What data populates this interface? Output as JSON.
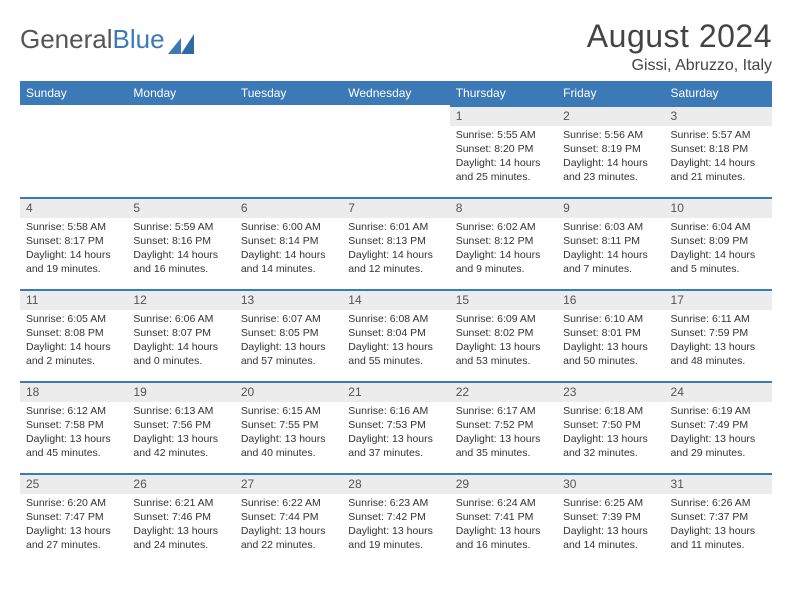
{
  "logo": {
    "text_gray": "General",
    "text_blue": "Blue"
  },
  "header": {
    "month_title": "August 2024",
    "location": "Gissi, Abruzzo, Italy"
  },
  "style": {
    "accent": "#3b79b7",
    "daynum_bg": "#ececec",
    "text_color": "#333333",
    "header_text": "#444444"
  },
  "weekdays": [
    "Sunday",
    "Monday",
    "Tuesday",
    "Wednesday",
    "Thursday",
    "Friday",
    "Saturday"
  ],
  "weeks": [
    [
      null,
      null,
      null,
      null,
      {
        "n": "1",
        "sr": "Sunrise: 5:55 AM",
        "ss": "Sunset: 8:20 PM",
        "d1": "Daylight: 14 hours",
        "d2": "and 25 minutes."
      },
      {
        "n": "2",
        "sr": "Sunrise: 5:56 AM",
        "ss": "Sunset: 8:19 PM",
        "d1": "Daylight: 14 hours",
        "d2": "and 23 minutes."
      },
      {
        "n": "3",
        "sr": "Sunrise: 5:57 AM",
        "ss": "Sunset: 8:18 PM",
        "d1": "Daylight: 14 hours",
        "d2": "and 21 minutes."
      }
    ],
    [
      {
        "n": "4",
        "sr": "Sunrise: 5:58 AM",
        "ss": "Sunset: 8:17 PM",
        "d1": "Daylight: 14 hours",
        "d2": "and 19 minutes."
      },
      {
        "n": "5",
        "sr": "Sunrise: 5:59 AM",
        "ss": "Sunset: 8:16 PM",
        "d1": "Daylight: 14 hours",
        "d2": "and 16 minutes."
      },
      {
        "n": "6",
        "sr": "Sunrise: 6:00 AM",
        "ss": "Sunset: 8:14 PM",
        "d1": "Daylight: 14 hours",
        "d2": "and 14 minutes."
      },
      {
        "n": "7",
        "sr": "Sunrise: 6:01 AM",
        "ss": "Sunset: 8:13 PM",
        "d1": "Daylight: 14 hours",
        "d2": "and 12 minutes."
      },
      {
        "n": "8",
        "sr": "Sunrise: 6:02 AM",
        "ss": "Sunset: 8:12 PM",
        "d1": "Daylight: 14 hours",
        "d2": "and 9 minutes."
      },
      {
        "n": "9",
        "sr": "Sunrise: 6:03 AM",
        "ss": "Sunset: 8:11 PM",
        "d1": "Daylight: 14 hours",
        "d2": "and 7 minutes."
      },
      {
        "n": "10",
        "sr": "Sunrise: 6:04 AM",
        "ss": "Sunset: 8:09 PM",
        "d1": "Daylight: 14 hours",
        "d2": "and 5 minutes."
      }
    ],
    [
      {
        "n": "11",
        "sr": "Sunrise: 6:05 AM",
        "ss": "Sunset: 8:08 PM",
        "d1": "Daylight: 14 hours",
        "d2": "and 2 minutes."
      },
      {
        "n": "12",
        "sr": "Sunrise: 6:06 AM",
        "ss": "Sunset: 8:07 PM",
        "d1": "Daylight: 14 hours",
        "d2": "and 0 minutes."
      },
      {
        "n": "13",
        "sr": "Sunrise: 6:07 AM",
        "ss": "Sunset: 8:05 PM",
        "d1": "Daylight: 13 hours",
        "d2": "and 57 minutes."
      },
      {
        "n": "14",
        "sr": "Sunrise: 6:08 AM",
        "ss": "Sunset: 8:04 PM",
        "d1": "Daylight: 13 hours",
        "d2": "and 55 minutes."
      },
      {
        "n": "15",
        "sr": "Sunrise: 6:09 AM",
        "ss": "Sunset: 8:02 PM",
        "d1": "Daylight: 13 hours",
        "d2": "and 53 minutes."
      },
      {
        "n": "16",
        "sr": "Sunrise: 6:10 AM",
        "ss": "Sunset: 8:01 PM",
        "d1": "Daylight: 13 hours",
        "d2": "and 50 minutes."
      },
      {
        "n": "17",
        "sr": "Sunrise: 6:11 AM",
        "ss": "Sunset: 7:59 PM",
        "d1": "Daylight: 13 hours",
        "d2": "and 48 minutes."
      }
    ],
    [
      {
        "n": "18",
        "sr": "Sunrise: 6:12 AM",
        "ss": "Sunset: 7:58 PM",
        "d1": "Daylight: 13 hours",
        "d2": "and 45 minutes."
      },
      {
        "n": "19",
        "sr": "Sunrise: 6:13 AM",
        "ss": "Sunset: 7:56 PM",
        "d1": "Daylight: 13 hours",
        "d2": "and 42 minutes."
      },
      {
        "n": "20",
        "sr": "Sunrise: 6:15 AM",
        "ss": "Sunset: 7:55 PM",
        "d1": "Daylight: 13 hours",
        "d2": "and 40 minutes."
      },
      {
        "n": "21",
        "sr": "Sunrise: 6:16 AM",
        "ss": "Sunset: 7:53 PM",
        "d1": "Daylight: 13 hours",
        "d2": "and 37 minutes."
      },
      {
        "n": "22",
        "sr": "Sunrise: 6:17 AM",
        "ss": "Sunset: 7:52 PM",
        "d1": "Daylight: 13 hours",
        "d2": "and 35 minutes."
      },
      {
        "n": "23",
        "sr": "Sunrise: 6:18 AM",
        "ss": "Sunset: 7:50 PM",
        "d1": "Daylight: 13 hours",
        "d2": "and 32 minutes."
      },
      {
        "n": "24",
        "sr": "Sunrise: 6:19 AM",
        "ss": "Sunset: 7:49 PM",
        "d1": "Daylight: 13 hours",
        "d2": "and 29 minutes."
      }
    ],
    [
      {
        "n": "25",
        "sr": "Sunrise: 6:20 AM",
        "ss": "Sunset: 7:47 PM",
        "d1": "Daylight: 13 hours",
        "d2": "and 27 minutes."
      },
      {
        "n": "26",
        "sr": "Sunrise: 6:21 AM",
        "ss": "Sunset: 7:46 PM",
        "d1": "Daylight: 13 hours",
        "d2": "and 24 minutes."
      },
      {
        "n": "27",
        "sr": "Sunrise: 6:22 AM",
        "ss": "Sunset: 7:44 PM",
        "d1": "Daylight: 13 hours",
        "d2": "and 22 minutes."
      },
      {
        "n": "28",
        "sr": "Sunrise: 6:23 AM",
        "ss": "Sunset: 7:42 PM",
        "d1": "Daylight: 13 hours",
        "d2": "and 19 minutes."
      },
      {
        "n": "29",
        "sr": "Sunrise: 6:24 AM",
        "ss": "Sunset: 7:41 PM",
        "d1": "Daylight: 13 hours",
        "d2": "and 16 minutes."
      },
      {
        "n": "30",
        "sr": "Sunrise: 6:25 AM",
        "ss": "Sunset: 7:39 PM",
        "d1": "Daylight: 13 hours",
        "d2": "and 14 minutes."
      },
      {
        "n": "31",
        "sr": "Sunrise: 6:26 AM",
        "ss": "Sunset: 7:37 PM",
        "d1": "Daylight: 13 hours",
        "d2": "and 11 minutes."
      }
    ]
  ]
}
